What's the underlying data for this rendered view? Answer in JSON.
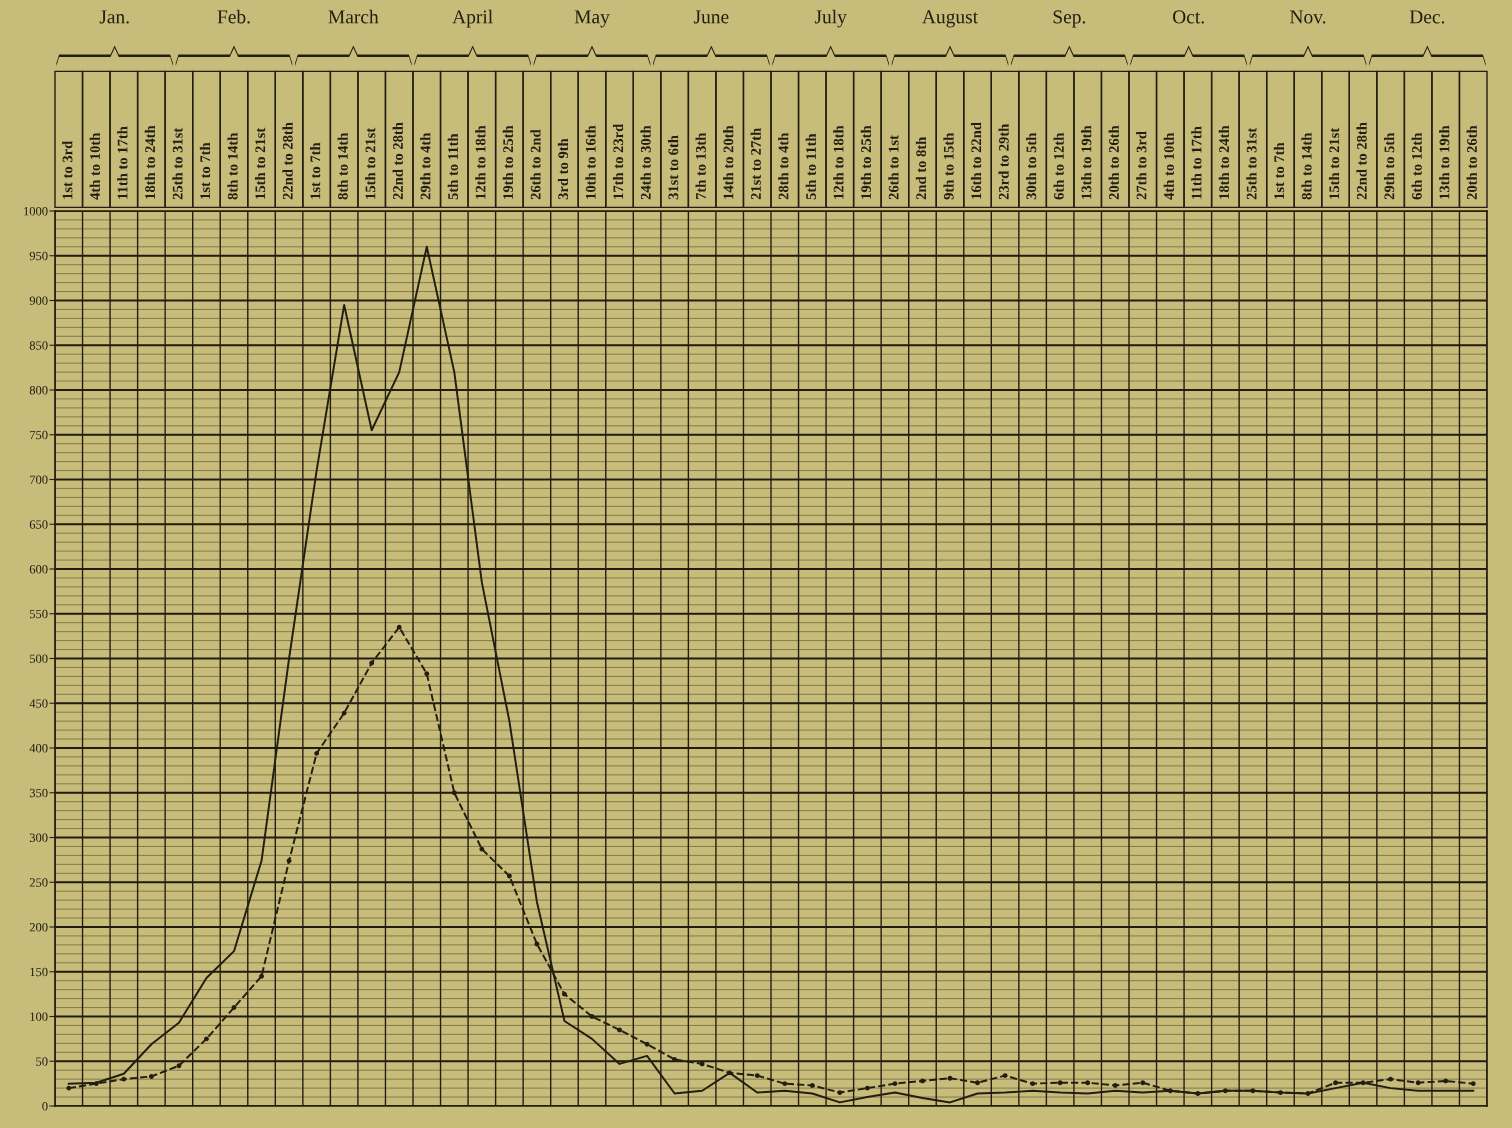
{
  "chart_data": {
    "type": "line",
    "categories": [
      "1st to 3rd",
      "4th to 10th",
      "11th to 17th",
      "18th to 24th",
      "25th to 31st",
      "1st to 7th",
      "8th to 14th",
      "15th to 21st",
      "22nd to 28th",
      "1st to 7th",
      "8th to 14th",
      "15th to 21st",
      "22nd to 28th",
      "29th to 4th",
      "5th to 11th",
      "12th to 18th",
      "19th to 25th",
      "26th to 2nd",
      "3rd to 9th",
      "10th to 16th",
      "17th to 23rd",
      "24th to 30th",
      "31st to 6th",
      "7th to 13th",
      "14th to 20th",
      "21st to 27th",
      "28th to 4th",
      "5th to 11th",
      "12th to 18th",
      "19th to 25th",
      "26th to 1st",
      "2nd to 8th",
      "9th to 15th",
      "16th to 22nd",
      "23rd to 29th",
      "30th to 5th",
      "6th to 12th",
      "13th to 19th",
      "20th to 26th",
      "27th to 3rd",
      "4th to 10th",
      "11th to 17th",
      "18th to 24th",
      "25th to 31st",
      "1st to 7th",
      "8th to 14th",
      "15th to 21st",
      "22nd to 28th",
      "29th to 5th",
      "6th to 12th",
      "13th to 19th",
      "20th to 26th"
    ],
    "series": [
      {
        "color": "#231e12",
        "line_style": "solid",
        "marker": "none",
        "values": [
          25,
          26,
          36,
          69,
          93,
          143,
          173,
          274,
          500,
          710,
          895,
          755,
          820,
          960,
          820,
          585,
          430,
          228,
          95,
          75,
          47,
          56,
          14,
          17,
          37,
          15,
          17,
          14,
          4,
          10,
          15,
          9,
          4,
          14,
          15,
          17,
          15,
          14,
          17,
          15,
          17,
          14,
          17,
          17,
          15,
          14,
          20,
          26,
          20,
          17,
          17,
          17
        ]
      },
      {
        "color": "#231e12",
        "line_style": "dashed",
        "marker": "circle",
        "values": [
          20,
          25,
          30,
          33,
          45,
          75,
          110,
          145,
          274,
          394,
          439,
          495,
          535,
          483,
          350,
          287,
          257,
          181,
          125,
          100,
          85,
          69,
          52,
          47,
          37,
          34,
          25,
          23,
          15,
          20,
          25,
          28,
          31,
          26,
          34,
          25,
          26,
          26,
          23,
          26,
          17,
          14,
          17,
          17,
          15,
          14,
          26,
          26,
          30,
          26,
          28,
          25
        ]
      }
    ],
    "ylim": [
      0,
      1000
    ],
    "yticks": [
      0,
      50,
      100,
      150,
      200,
      250,
      300,
      350,
      400,
      450,
      500,
      550,
      600,
      650,
      700,
      750,
      800,
      850,
      900,
      950,
      1000
    ],
    "grid": true,
    "annotations": [
      "Jan.",
      "Feb.",
      "March",
      "April",
      "May",
      "June",
      "July",
      "August",
      "Sep.",
      "Oct.",
      "Nov.",
      "Dec."
    ]
  }
}
